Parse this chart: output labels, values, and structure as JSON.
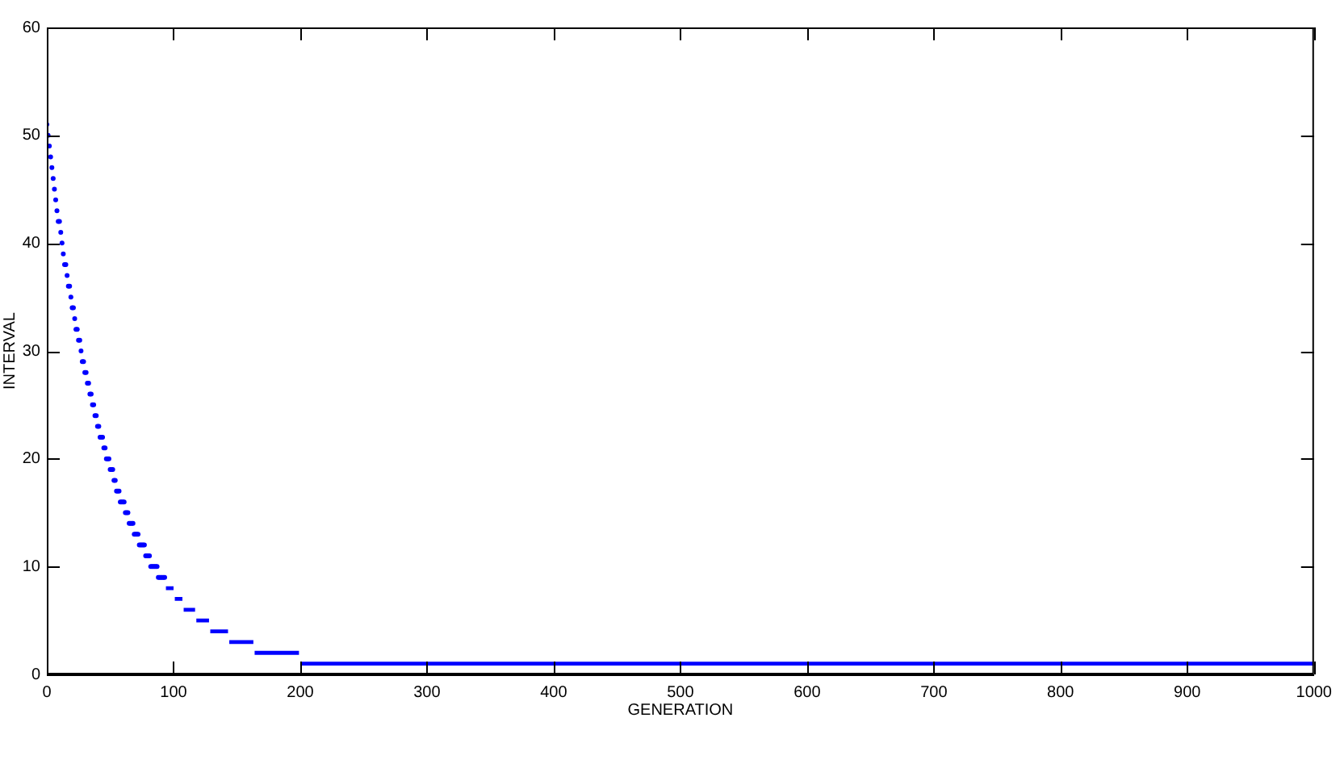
{
  "chart_data": {
    "type": "line",
    "xlabel": "GENERATION",
    "ylabel": "INTERVAL",
    "series": [
      {
        "type": "scatter",
        "color": "#0000ff",
        "x": [
          0,
          1,
          2,
          3,
          4,
          5,
          6,
          7,
          8,
          9,
          10,
          11,
          12,
          13,
          14,
          15,
          16,
          17,
          18,
          19,
          20,
          21,
          22,
          23,
          24,
          25,
          26,
          27,
          28,
          29,
          30,
          31,
          32,
          33,
          34,
          35,
          36,
          37,
          38,
          39,
          40,
          41,
          42,
          43,
          44,
          45,
          46,
          47,
          48,
          49,
          50,
          51,
          52,
          53,
          54,
          55,
          56,
          57,
          58,
          59,
          60,
          61,
          62,
          63,
          64,
          65,
          66,
          67,
          68,
          69,
          70,
          71,
          72,
          73,
          74,
          75,
          76,
          77,
          78,
          79,
          80,
          81,
          82,
          83,
          84,
          85,
          86,
          87,
          88,
          89,
          90,
          91,
          92,
          93
        ],
        "values": [
          51,
          50,
          49,
          48,
          47,
          46,
          45,
          44,
          43,
          42,
          42,
          41,
          40,
          39,
          38,
          38,
          37,
          36,
          36,
          35,
          34,
          34,
          33,
          32,
          32,
          31,
          31,
          30,
          29,
          29,
          28,
          28,
          27,
          27,
          26,
          26,
          25,
          25,
          24,
          24,
          23,
          23,
          22,
          22,
          22,
          21,
          21,
          20,
          20,
          20,
          19,
          19,
          19,
          18,
          18,
          17,
          17,
          17,
          16,
          16,
          16,
          16,
          15,
          15,
          15,
          14,
          14,
          14,
          14,
          13,
          13,
          13,
          13,
          12,
          12,
          12,
          12,
          12,
          11,
          11,
          11,
          11,
          10,
          10,
          10,
          10,
          10,
          10,
          9,
          9,
          9,
          9,
          9,
          9
        ]
      },
      {
        "type": "line",
        "marker": "none",
        "color": "#0000ff",
        "x": [
          94,
          100,
          null,
          101,
          107,
          null,
          108,
          117,
          null,
          118,
          128,
          null,
          129,
          143,
          null,
          144,
          163,
          null,
          164,
          199,
          null,
          200,
          1000
        ],
        "values": [
          8,
          8,
          null,
          7,
          7,
          null,
          6,
          6,
          null,
          5,
          5,
          null,
          4,
          4,
          null,
          3,
          3,
          null,
          2,
          2,
          null,
          1,
          1
        ]
      }
    ],
    "xlim": [
      0,
      1000
    ],
    "ylim": [
      0,
      60
    ],
    "xticks": [
      0,
      100,
      200,
      300,
      400,
      500,
      600,
      700,
      800,
      900,
      1000
    ],
    "yticks": [
      0,
      10,
      20,
      30,
      40,
      50,
      60
    ],
    "grid": false,
    "legend": false,
    "marker": "circle",
    "line_style": "solid"
  }
}
